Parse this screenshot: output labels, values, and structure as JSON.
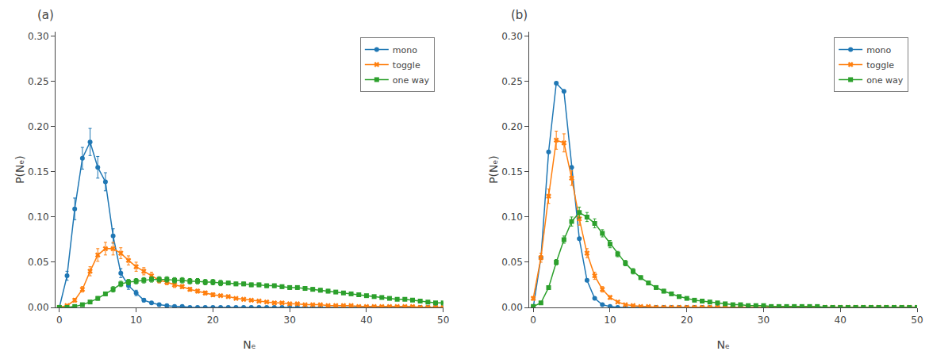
{
  "chart_data": [
    {
      "type": "line",
      "title": "(a)",
      "xlabel": "Nₑ",
      "ylabel": "P(Nₑ)",
      "x": [
        0,
        1,
        2,
        3,
        4,
        5,
        6,
        7,
        8,
        9,
        10,
        11,
        12,
        13,
        14,
        15,
        16,
        17,
        18,
        19,
        20,
        21,
        22,
        23,
        24,
        25,
        26,
        27,
        28,
        29,
        30,
        31,
        32,
        33,
        34,
        35,
        36,
        37,
        38,
        39,
        40,
        41,
        42,
        43,
        44,
        45,
        46,
        47,
        48,
        49,
        50
      ],
      "xlim": [
        -0.5,
        50
      ],
      "ylim": [
        0.0,
        0.305
      ],
      "xticks": [
        0,
        10,
        20,
        30,
        40,
        50
      ],
      "yticks": [
        {
          "value": 0.0,
          "label": "0.00"
        },
        0.05,
        {
          "value": 0.1,
          "label": "0.10"
        },
        0.15,
        {
          "value": 0.2,
          "label": "0.20"
        },
        0.25,
        {
          "value": 0.3,
          "label": "0.30"
        }
      ],
      "grid": false,
      "legend": "upper right",
      "series": [
        {
          "name": "mono",
          "color": "#1f77b4",
          "marker": "circle",
          "values": [
            0.0,
            0.035,
            0.109,
            0.165,
            0.183,
            0.155,
            0.139,
            0.079,
            0.038,
            0.024,
            0.016,
            0.008,
            0.005,
            0.003,
            0.002,
            0.001,
            0.001,
            0.0,
            0.0,
            0.0,
            0.0,
            0.0,
            0.0,
            0.0,
            0.0,
            0.0,
            0.0,
            0.0,
            0.0,
            0.0,
            0.0,
            0.0,
            0.0,
            0.0,
            0.0,
            0.0,
            0.0,
            0.0,
            0.0,
            0.0,
            0.0,
            0.0,
            0.0,
            0.0,
            0.0,
            0.0,
            0.0,
            0.0,
            0.0,
            0.0,
            0.0
          ],
          "yerr": [
            0.0,
            0.005,
            0.012,
            0.012,
            0.015,
            0.012,
            0.01,
            0.008,
            0.005,
            0.004,
            0.003,
            0.002,
            0.001,
            0.001,
            0.001,
            0.0,
            0.0,
            0.0,
            0.0,
            0.0,
            0.0,
            0.0,
            0.0,
            0.0,
            0.0,
            0.0,
            0.0,
            0.0,
            0.0,
            0.0,
            0.0,
            0.0,
            0.0,
            0.0,
            0.0,
            0.0,
            0.0,
            0.0,
            0.0,
            0.0,
            0.0,
            0.0,
            0.0,
            0.0,
            0.0,
            0.0,
            0.0,
            0.0,
            0.0,
            0.0,
            0.0
          ]
        },
        {
          "name": "toggle",
          "color": "#ff7f0e",
          "marker": "x",
          "values": [
            0.0,
            0.002,
            0.008,
            0.02,
            0.04,
            0.058,
            0.065,
            0.065,
            0.06,
            0.052,
            0.045,
            0.04,
            0.035,
            0.03,
            0.028,
            0.025,
            0.023,
            0.02,
            0.018,
            0.016,
            0.014,
            0.013,
            0.012,
            0.01,
            0.009,
            0.008,
            0.007,
            0.006,
            0.005,
            0.005,
            0.004,
            0.004,
            0.003,
            0.003,
            0.003,
            0.002,
            0.002,
            0.002,
            0.002,
            0.001,
            0.001,
            0.001,
            0.001,
            0.001,
            0.001,
            0.001,
            0.001,
            0.0,
            0.0,
            0.0,
            0.0
          ],
          "yerr": [
            0.0,
            0.001,
            0.002,
            0.003,
            0.005,
            0.007,
            0.007,
            0.007,
            0.006,
            0.005,
            0.005,
            0.004,
            0.004,
            0.003,
            0.003,
            0.003,
            0.002,
            0.002,
            0.002,
            0.002,
            0.002,
            0.001,
            0.001,
            0.001,
            0.001,
            0.001,
            0.001,
            0.001,
            0.001,
            0.001,
            0.0,
            0.0,
            0.0,
            0.0,
            0.0,
            0.0,
            0.0,
            0.0,
            0.0,
            0.0,
            0.0,
            0.0,
            0.0,
            0.0,
            0.0,
            0.0,
            0.0,
            0.0,
            0.0,
            0.0,
            0.0
          ]
        },
        {
          "name": "one way",
          "color": "#2ca02c",
          "marker": "square",
          "values": [
            0.0,
            0.0,
            0.001,
            0.003,
            0.006,
            0.01,
            0.015,
            0.02,
            0.026,
            0.028,
            0.029,
            0.03,
            0.031,
            0.031,
            0.031,
            0.03,
            0.03,
            0.029,
            0.029,
            0.028,
            0.028,
            0.027,
            0.027,
            0.026,
            0.026,
            0.025,
            0.025,
            0.024,
            0.024,
            0.023,
            0.022,
            0.022,
            0.021,
            0.02,
            0.019,
            0.018,
            0.017,
            0.016,
            0.015,
            0.014,
            0.013,
            0.012,
            0.011,
            0.01,
            0.009,
            0.009,
            0.008,
            0.007,
            0.006,
            0.005,
            0.005
          ],
          "yerr": [
            0.0,
            0.0,
            0.0,
            0.001,
            0.001,
            0.002,
            0.002,
            0.003,
            0.003,
            0.003,
            0.003,
            0.003,
            0.003,
            0.003,
            0.003,
            0.003,
            0.003,
            0.003,
            0.003,
            0.003,
            0.003,
            0.003,
            0.002,
            0.002,
            0.002,
            0.002,
            0.002,
            0.002,
            0.002,
            0.002,
            0.002,
            0.002,
            0.002,
            0.002,
            0.002,
            0.002,
            0.001,
            0.001,
            0.001,
            0.001,
            0.001,
            0.001,
            0.001,
            0.001,
            0.001,
            0.001,
            0.001,
            0.001,
            0.001,
            0.001,
            0.001
          ]
        }
      ]
    },
    {
      "type": "line",
      "title": "(b)",
      "xlabel": "Nₑ",
      "ylabel": "P(Nₑ)",
      "x": [
        0,
        1,
        2,
        3,
        4,
        5,
        6,
        7,
        8,
        9,
        10,
        11,
        12,
        13,
        14,
        15,
        16,
        17,
        18,
        19,
        20,
        21,
        22,
        23,
        24,
        25,
        26,
        27,
        28,
        29,
        30,
        31,
        32,
        33,
        34,
        35,
        36,
        37,
        38,
        39,
        40,
        41,
        42,
        43,
        44,
        45,
        46,
        47,
        48,
        49,
        50
      ],
      "xlim": [
        -0.5,
        50
      ],
      "ylim": [
        0.0,
        0.305
      ],
      "xticks": [
        0,
        10,
        20,
        30,
        40,
        50
      ],
      "yticks": [
        {
          "value": 0.0,
          "label": "0.00"
        },
        0.05,
        {
          "value": 0.1,
          "label": "0.10"
        },
        0.15,
        {
          "value": 0.2,
          "label": "0.20"
        },
        0.25,
        {
          "value": 0.3,
          "label": "0.30"
        }
      ],
      "grid": false,
      "legend": "upper right",
      "series": [
        {
          "name": "mono",
          "color": "#1f77b4",
          "marker": "circle",
          "values": [
            0.0,
            0.055,
            0.172,
            0.248,
            0.239,
            0.155,
            0.076,
            0.03,
            0.01,
            0.003,
            0.001,
            0.0,
            0.0,
            0.0,
            0.0,
            0.0,
            0.0,
            0.0,
            0.0,
            0.0,
            0.0,
            0.0,
            0.0,
            0.0,
            0.0,
            0.0,
            0.0,
            0.0,
            0.0,
            0.0,
            0.0,
            0.0,
            0.0,
            0.0,
            0.0,
            0.0,
            0.0,
            0.0,
            0.0,
            0.0,
            0.0,
            0.0,
            0.0,
            0.0,
            0.0,
            0.0,
            0.0,
            0.0,
            0.0,
            0.0,
            0.0
          ],
          "yerr": [
            0.0,
            0.0,
            0.0,
            0.0,
            0.0,
            0.0,
            0.0,
            0.0,
            0.0,
            0.0,
            0.0,
            0.0,
            0.0,
            0.0,
            0.0,
            0.0,
            0.0,
            0.0,
            0.0,
            0.0,
            0.0,
            0.0,
            0.0,
            0.0,
            0.0,
            0.0,
            0.0,
            0.0,
            0.0,
            0.0,
            0.0,
            0.0,
            0.0,
            0.0,
            0.0,
            0.0,
            0.0,
            0.0,
            0.0,
            0.0,
            0.0,
            0.0,
            0.0,
            0.0,
            0.0,
            0.0,
            0.0,
            0.0,
            0.0,
            0.0,
            0.0
          ]
        },
        {
          "name": "toggle",
          "color": "#ff7f0e",
          "marker": "x",
          "values": [
            0.01,
            0.055,
            0.123,
            0.185,
            0.182,
            0.143,
            0.098,
            0.06,
            0.035,
            0.02,
            0.011,
            0.006,
            0.003,
            0.002,
            0.001,
            0.001,
            0.0,
            0.0,
            0.0,
            0.0,
            0.0,
            0.0,
            0.0,
            0.0,
            0.0,
            0.0,
            0.0,
            0.0,
            0.0,
            0.0,
            0.0,
            0.0,
            0.0,
            0.0,
            0.0,
            0.0,
            0.0,
            0.0,
            0.0,
            0.0,
            0.0,
            0.0,
            0.0,
            0.0,
            0.0,
            0.0,
            0.0,
            0.0,
            0.0,
            0.0,
            0.0
          ],
          "yerr": [
            0.002,
            0.005,
            0.008,
            0.01,
            0.01,
            0.008,
            0.007,
            0.005,
            0.004,
            0.003,
            0.002,
            0.001,
            0.001,
            0.001,
            0.0,
            0.0,
            0.0,
            0.0,
            0.0,
            0.0,
            0.0,
            0.0,
            0.0,
            0.0,
            0.0,
            0.0,
            0.0,
            0.0,
            0.0,
            0.0,
            0.0,
            0.0,
            0.0,
            0.0,
            0.0,
            0.0,
            0.0,
            0.0,
            0.0,
            0.0,
            0.0,
            0.0,
            0.0,
            0.0,
            0.0,
            0.0,
            0.0,
            0.0,
            0.0,
            0.0,
            0.0
          ]
        },
        {
          "name": "one way",
          "color": "#2ca02c",
          "marker": "square",
          "values": [
            0.001,
            0.005,
            0.022,
            0.05,
            0.075,
            0.095,
            0.105,
            0.1,
            0.093,
            0.082,
            0.07,
            0.059,
            0.049,
            0.04,
            0.033,
            0.027,
            0.022,
            0.018,
            0.015,
            0.012,
            0.01,
            0.008,
            0.007,
            0.006,
            0.005,
            0.004,
            0.003,
            0.003,
            0.002,
            0.002,
            0.002,
            0.001,
            0.001,
            0.001,
            0.001,
            0.001,
            0.001,
            0.001,
            0.0,
            0.0,
            0.0,
            0.0,
            0.0,
            0.0,
            0.0,
            0.0,
            0.0,
            0.0,
            0.0,
            0.0,
            0.0
          ],
          "yerr": [
            0.0,
            0.001,
            0.002,
            0.003,
            0.004,
            0.005,
            0.006,
            0.005,
            0.005,
            0.004,
            0.004,
            0.003,
            0.003,
            0.003,
            0.002,
            0.002,
            0.002,
            0.002,
            0.001,
            0.001,
            0.001,
            0.001,
            0.001,
            0.001,
            0.001,
            0.001,
            0.0,
            0.0,
            0.0,
            0.0,
            0.0,
            0.0,
            0.0,
            0.0,
            0.0,
            0.0,
            0.0,
            0.0,
            0.0,
            0.0,
            0.0,
            0.0,
            0.0,
            0.0,
            0.0,
            0.0,
            0.0,
            0.0,
            0.0,
            0.0,
            0.0
          ]
        }
      ]
    }
  ]
}
